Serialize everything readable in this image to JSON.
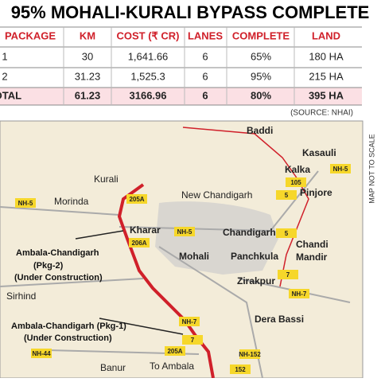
{
  "header": {
    "title": "95% MOHALI-KURALI BYPASS COMPLETE"
  },
  "table": {
    "columns": [
      "PACKAGE",
      "KM",
      "COST (₹ CR)",
      "LANES",
      "COMPLETE",
      "LAND"
    ],
    "rows": [
      [
        "1",
        "30",
        "1,641.66",
        "6",
        "65%",
        "180 HA"
      ],
      [
        "2",
        "31.23",
        "1,525.3",
        "6",
        "95%",
        "215 HA"
      ],
      [
        "TOTAL",
        "61.23",
        "3166.96",
        "6",
        "80%",
        "395 HA"
      ]
    ]
  },
  "source": "(SOURCE: NHAI)",
  "map": {
    "note": "MAP NOT TO SCALE",
    "places": [
      "Baddi",
      "Kasauli",
      "Kalka",
      "Pinjore",
      "Kurali",
      "Morinda",
      "New Chandigarh",
      "Kharar",
      "Chandigarh",
      "Chandi",
      "Mandir",
      "Mohali",
      "Panchkula",
      "Zirakpur",
      "Sirhind",
      "Dera Bassi",
      "Banur",
      "To Ambala"
    ],
    "callouts": [
      "Ambala-Chandigarh",
      "(Pkg-2)",
      "(Under Construction)",
      "Ambala-Chandigarh (Pkg-1)",
      "(Under Construction)"
    ],
    "road_labels": [
      "NH-5",
      "105",
      "NH-5",
      "205A",
      "NH-5",
      "206A",
      "5",
      "7",
      "NH-7",
      "NH-7",
      "7",
      "NH-44",
      "205A",
      "NH-152",
      "152",
      "5"
    ]
  }
}
